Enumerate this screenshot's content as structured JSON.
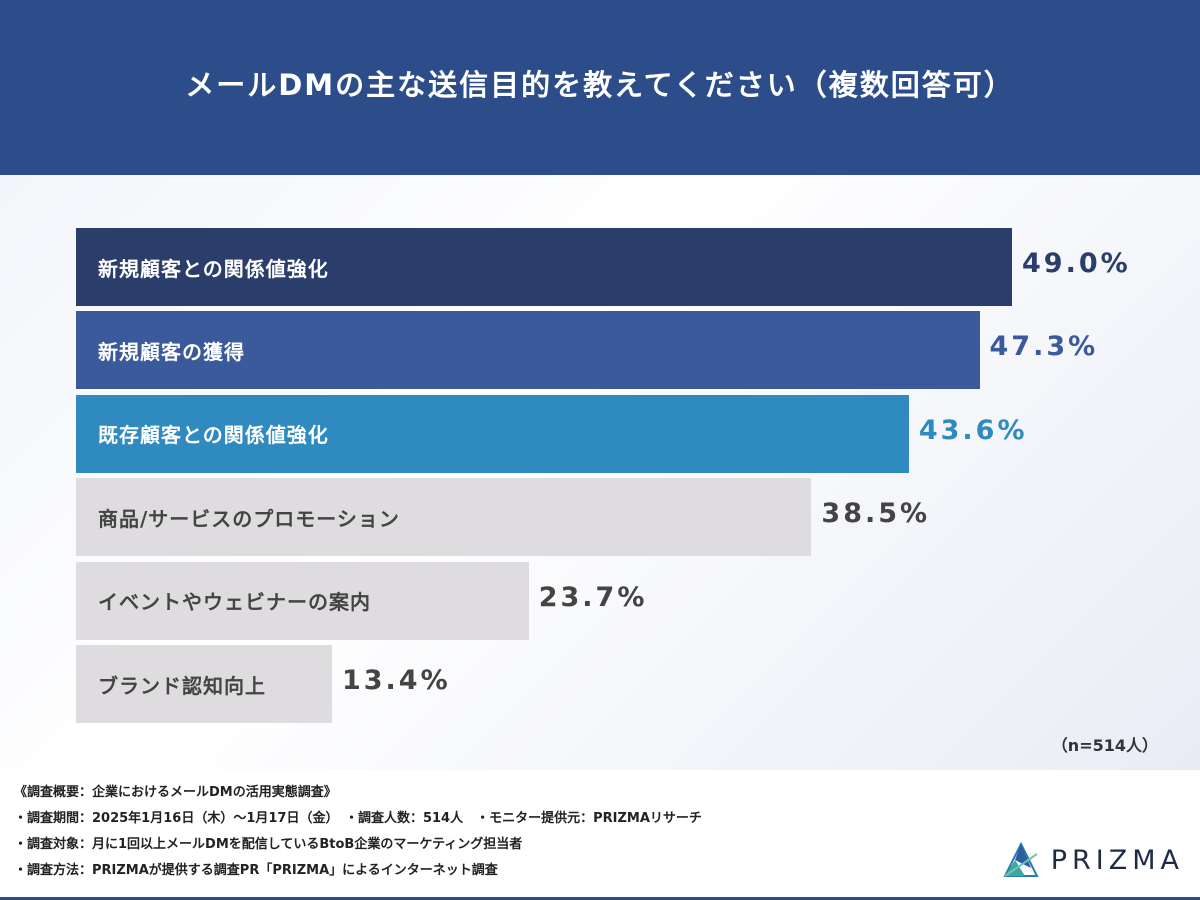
{
  "header": {
    "title": "メールDMの主な送信目的を教えてください（複数回答可）"
  },
  "chart_data": {
    "type": "bar",
    "orientation": "horizontal",
    "title": "メールDMの主な送信目的を教えてください（複数回答可）",
    "categories": [
      "新規顧客との関係値強化",
      "新規顧客の獲得",
      "既存顧客との関係値強化",
      "商品/サービスのプロモーション",
      "イベントやウェビナーの案内",
      "ブランド認知向上"
    ],
    "values": [
      49.0,
      47.3,
      43.6,
      38.5,
      23.7,
      13.4
    ],
    "value_labels": [
      "49.0%",
      "47.3%",
      "43.6%",
      "38.5%",
      "23.7%",
      "13.4%"
    ],
    "bar_colors": [
      "#2b3d6b",
      "#3a5a9c",
      "#2f8bbf",
      "#dedcde",
      "#dedcde",
      "#dedcde"
    ],
    "label_colors": [
      "#ffffff",
      "#ffffff",
      "#ffffff",
      "#444444",
      "#444444",
      "#444444"
    ],
    "value_colors": [
      "#2b3d6b",
      "#3a5a9c",
      "#2f8bbf",
      "#444444",
      "#444444",
      "#444444"
    ],
    "unit": "%",
    "grid": false,
    "legend": "none"
  },
  "sample_note": "（n=514人）",
  "footer": {
    "notes": [
      "《調査概要：企業におけるメールDMの活用実態調査》",
      "・調査期間：2025年1月16日（木）～1月17日（金）　・調査人数：514人　・モニター提供元：PRIZMAリサーチ",
      "・調査対象：月に1回以上メールDMを配信しているBtoB企業のマーケティング担当者",
      "・調査方法：PRIZMAが提供する調査PR「PRIZMA」によるインターネット調査"
    ],
    "brand": "PRIZMA"
  }
}
